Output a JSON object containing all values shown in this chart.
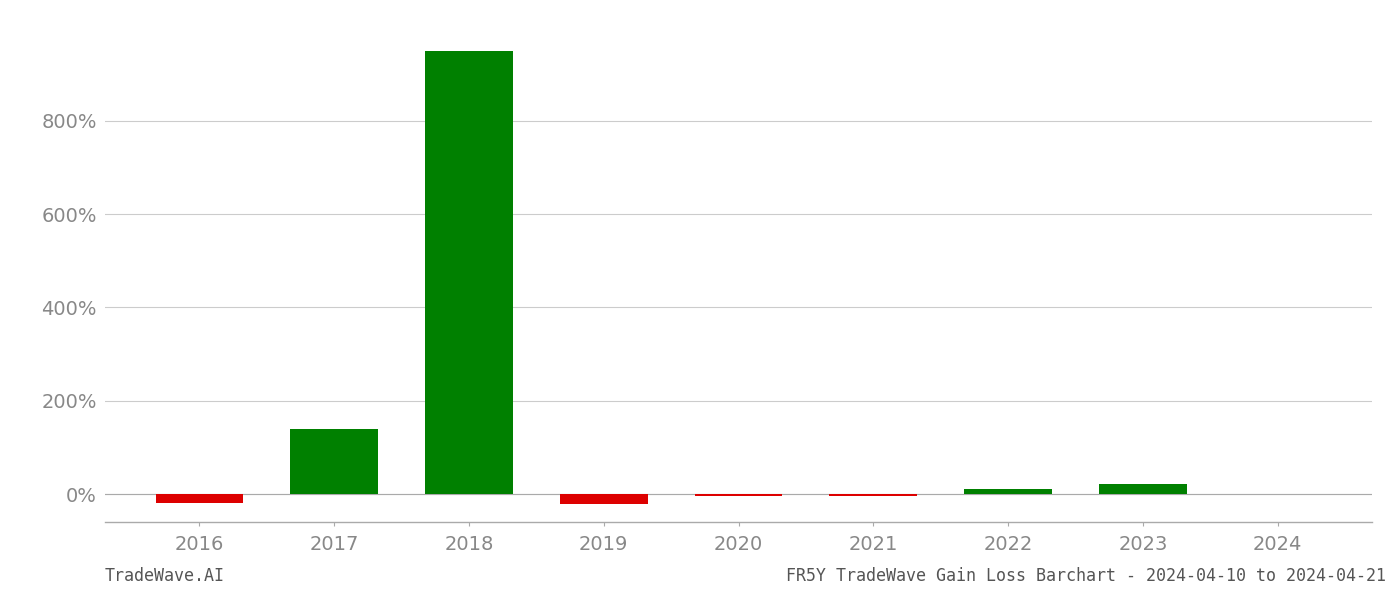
{
  "years": [
    2016,
    2017,
    2018,
    2019,
    2020,
    2021,
    2022,
    2023,
    2024
  ],
  "values": [
    -0.2,
    1.4,
    9.5,
    -0.22,
    -0.05,
    -0.05,
    0.1,
    0.22,
    0.0
  ],
  "colors": [
    "#dd0000",
    "#008000",
    "#008000",
    "#dd0000",
    "#dd0000",
    "#dd0000",
    "#008000",
    "#008000",
    "#008000"
  ],
  "ylim_min": -0.6,
  "ylim_max": 10.2,
  "yticks": [
    0.0,
    2.0,
    4.0,
    6.0,
    8.0
  ],
  "ytick_labels": [
    "0%",
    "200%",
    "400%",
    "600%",
    "800%"
  ],
  "background_color": "#ffffff",
  "grid_color": "#cccccc",
  "bar_width": 0.65,
  "tick_label_color": "#888888",
  "bottom_left_text": "TradeWave.AI",
  "bottom_right_text": "FR5Y TradeWave Gain Loss Barchart - 2024-04-10 to 2024-04-21",
  "bottom_text_color": "#555555",
  "font_size_ticks": 14,
  "font_size_bottom": 12
}
